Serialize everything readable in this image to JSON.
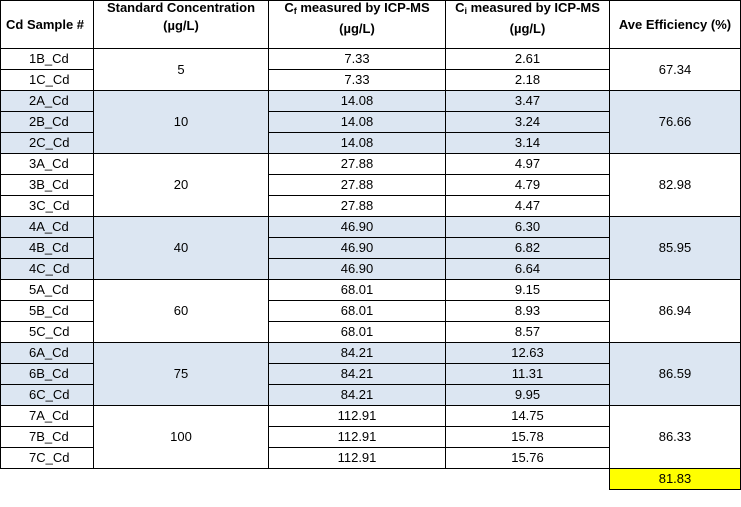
{
  "headers": {
    "sample": "Cd Sample #",
    "std_line1": "Standard Concentration",
    "std_line2": "(µg/L)",
    "cf_prefix": "C",
    "cf_sub": "f",
    "cf_rest": " measured by ICP-MS",
    "cf_line2": "(µg/L)",
    "ci_prefix": "C",
    "ci_sub": "i",
    "ci_rest": " measured by ICP-MS",
    "ci_line2": "(µg/L)",
    "eff": "Ave Efficiency (%)"
  },
  "colors": {
    "band": "#dce6f2",
    "highlight": "#ffff00"
  },
  "groups": [
    {
      "std": "5",
      "eff": "67.34",
      "rows": [
        {
          "sample": "1B_Cd",
          "cf": "7.33",
          "ci": "2.61"
        },
        {
          "sample": "1C_Cd",
          "cf": "7.33",
          "ci": "2.18"
        }
      ]
    },
    {
      "std": "10",
      "eff": "76.66",
      "rows": [
        {
          "sample": "2A_Cd",
          "cf": "14.08",
          "ci": "3.47"
        },
        {
          "sample": "2B_Cd",
          "cf": "14.08",
          "ci": "3.24"
        },
        {
          "sample": "2C_Cd",
          "cf": "14.08",
          "ci": "3.14"
        }
      ]
    },
    {
      "std": "20",
      "eff": "82.98",
      "rows": [
        {
          "sample": "3A_Cd",
          "cf": "27.88",
          "ci": "4.97"
        },
        {
          "sample": "3B_Cd",
          "cf": "27.88",
          "ci": "4.79"
        },
        {
          "sample": "3C_Cd",
          "cf": "27.88",
          "ci": "4.47"
        }
      ]
    },
    {
      "std": "40",
      "eff": "85.95",
      "rows": [
        {
          "sample": "4A_Cd",
          "cf": "46.90",
          "ci": "6.30"
        },
        {
          "sample": "4B_Cd",
          "cf": "46.90",
          "ci": "6.82"
        },
        {
          "sample": "4C_Cd",
          "cf": "46.90",
          "ci": "6.64"
        }
      ]
    },
    {
      "std": "60",
      "eff": "86.94",
      "rows": [
        {
          "sample": "5A_Cd",
          "cf": "68.01",
          "ci": "9.15"
        },
        {
          "sample": "5B_Cd",
          "cf": "68.01",
          "ci": "8.93"
        },
        {
          "sample": "5C_Cd",
          "cf": "68.01",
          "ci": "8.57"
        }
      ]
    },
    {
      "std": "75",
      "eff": "86.59",
      "rows": [
        {
          "sample": "6A_Cd",
          "cf": "84.21",
          "ci": "12.63"
        },
        {
          "sample": "6B_Cd",
          "cf": "84.21",
          "ci": "11.31"
        },
        {
          "sample": "6C_Cd",
          "cf": "84.21",
          "ci": "9.95"
        }
      ]
    },
    {
      "std": "100",
      "eff": "86.33",
      "rows": [
        {
          "sample": "7A_Cd",
          "cf": "112.91",
          "ci": "14.75"
        },
        {
          "sample": "7B_Cd",
          "cf": "112.91",
          "ci": "15.78"
        },
        {
          "sample": "7C_Cd",
          "cf": "112.91",
          "ci": "15.76"
        }
      ]
    }
  ],
  "overall_efficiency": "81.83"
}
